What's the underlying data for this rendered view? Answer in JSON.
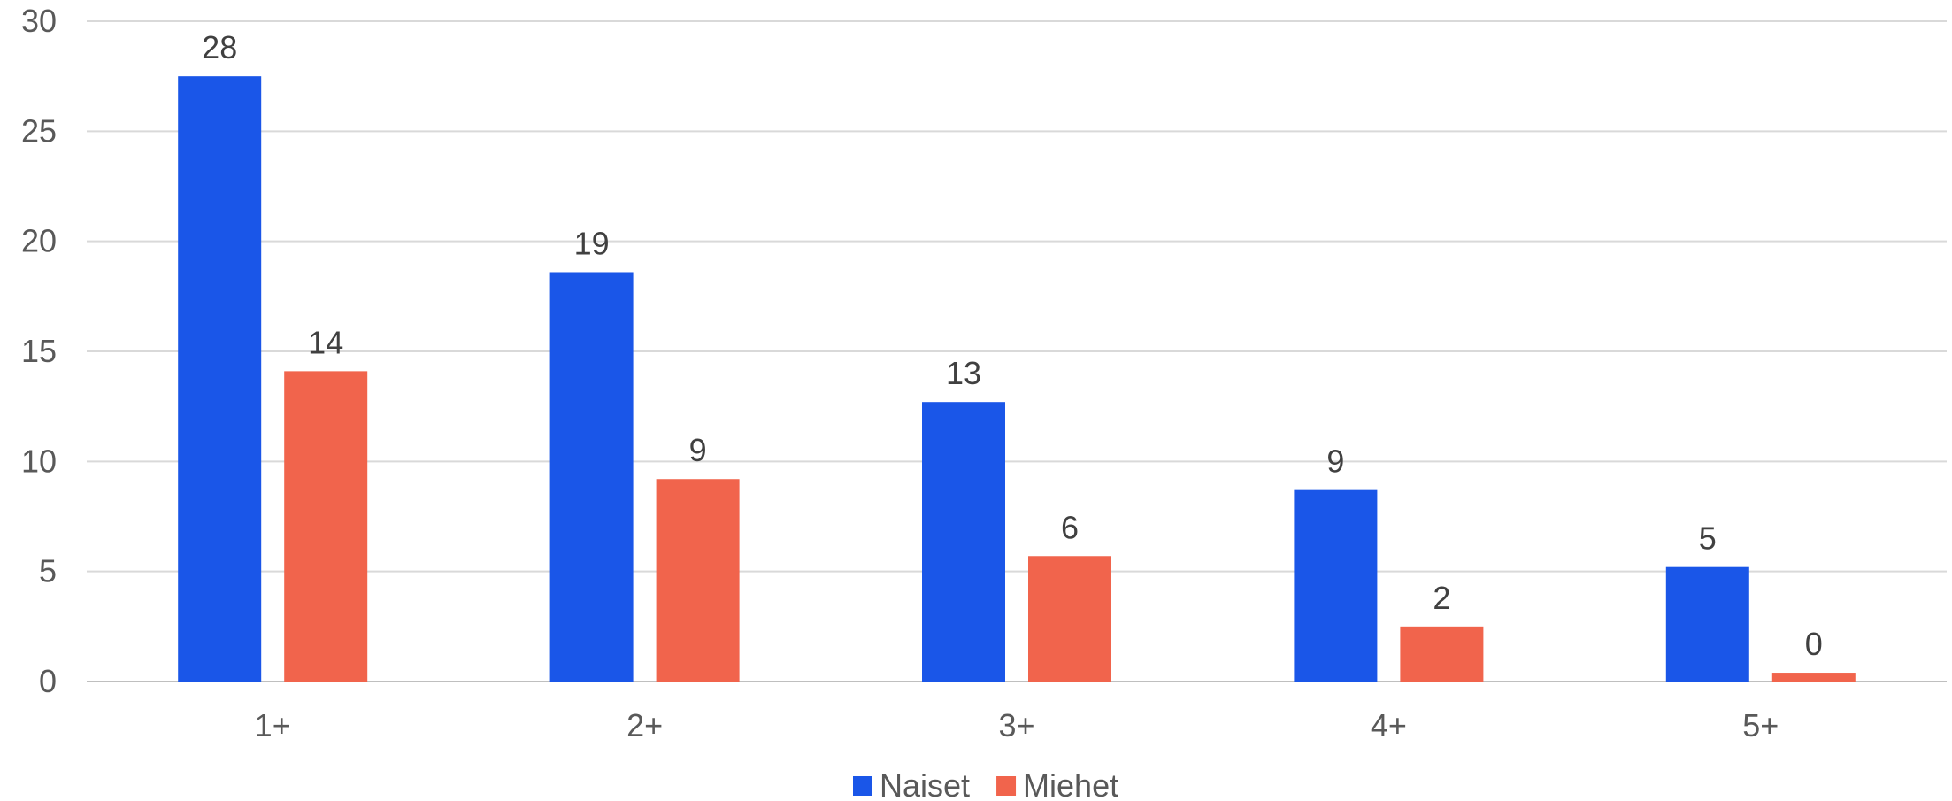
{
  "chart_data": {
    "type": "bar",
    "categories": [
      "1+",
      "2+",
      "3+",
      "4+",
      "5+"
    ],
    "series": [
      {
        "name": "Naiset",
        "color": "#1a56e8",
        "values": [
          27.5,
          18.6,
          12.7,
          8.7,
          5.2
        ],
        "labels": [
          "28",
          "19",
          "13",
          "9",
          "5"
        ]
      },
      {
        "name": "Miehet",
        "color": "#f1644c",
        "values": [
          14.1,
          9.2,
          5.7,
          2.5,
          0.4
        ],
        "labels": [
          "14",
          "9",
          "6",
          "2",
          "0"
        ]
      }
    ],
    "yticks": [
      "0",
      "5",
      "10",
      "15",
      "20",
      "25",
      "30"
    ],
    "ylim": [
      0,
      30
    ],
    "grid": true,
    "legend_position": "bottom"
  }
}
